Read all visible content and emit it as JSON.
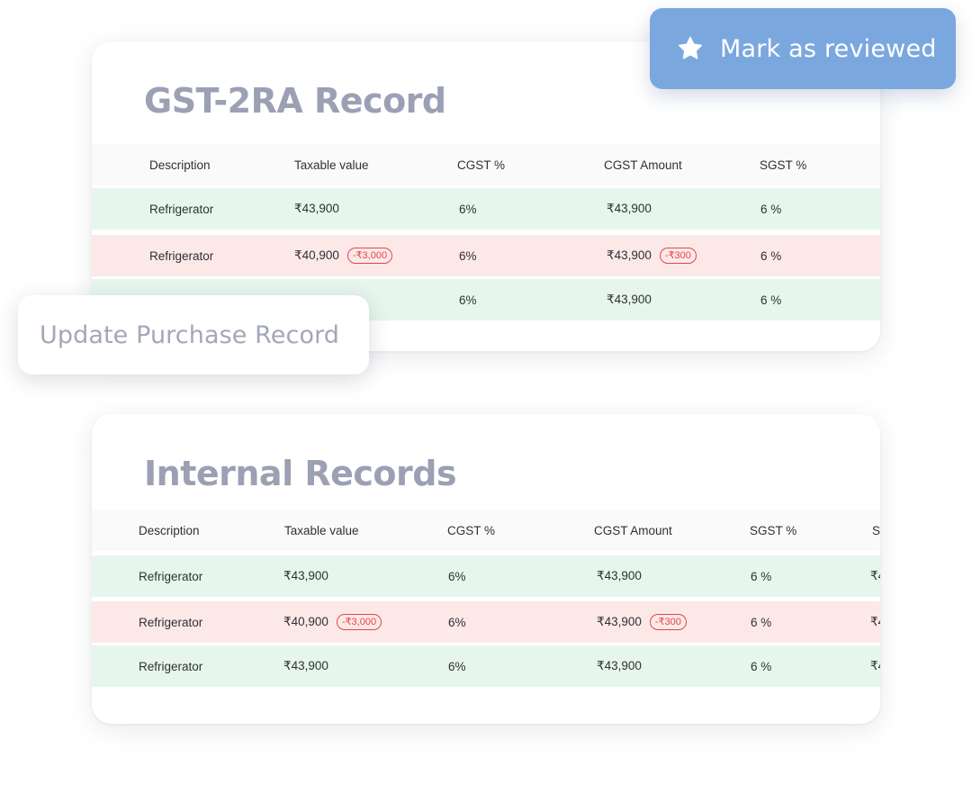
{
  "actions": {
    "mark_reviewed": {
      "label": "Mark as reviewed",
      "icon": "star-icon",
      "color": "#7ba7df"
    },
    "update_record": {
      "label": "Update Purchase Record"
    }
  },
  "gst_record": {
    "title": "GST-2RA Record",
    "columns": [
      "Description",
      "Taxable value",
      "CGST %",
      "CGST Amount",
      "SGST %"
    ],
    "rows": [
      {
        "status": "match",
        "description": "Refrigerator",
        "taxable_value": "₹43,900",
        "taxable_diff": "",
        "cgst_pct": "6%",
        "cgst_amount": "₹43,900",
        "cgst_diff": "",
        "sgst_pct": "6 %"
      },
      {
        "status": "mismatch",
        "description": "Refrigerator",
        "taxable_value": "₹40,900",
        "taxable_diff": "-₹3,000",
        "cgst_pct": "6%",
        "cgst_amount": "₹43,900",
        "cgst_diff": "-₹300",
        "sgst_pct": "6 %"
      },
      {
        "status": "match",
        "description": "",
        "taxable_value": "",
        "taxable_diff": "",
        "cgst_pct": "6%",
        "cgst_amount": "₹43,900",
        "cgst_diff": "",
        "sgst_pct": "6 %"
      }
    ]
  },
  "internal_records": {
    "title": "Internal Records",
    "columns": [
      "Description",
      "Taxable value",
      "CGST %",
      "CGST Amount",
      "SGST %",
      "S"
    ],
    "rows": [
      {
        "status": "match",
        "description": "Refrigerator",
        "taxable_value": "₹43,900",
        "taxable_diff": "",
        "cgst_pct": "6%",
        "cgst_amount": "₹43,900",
        "cgst_diff": "",
        "sgst_pct": "6 %",
        "extra": "₹4"
      },
      {
        "status": "mismatch",
        "description": "Refrigerator",
        "taxable_value": "₹40,900",
        "taxable_diff": "-₹3,000",
        "cgst_pct": "6%",
        "cgst_amount": "₹43,900",
        "cgst_diff": "-₹300",
        "sgst_pct": "6 %",
        "extra": "₹4"
      },
      {
        "status": "match",
        "description": "Refrigerator",
        "taxable_value": "₹43,900",
        "taxable_diff": "",
        "cgst_pct": "6%",
        "cgst_amount": "₹43,900",
        "cgst_diff": "",
        "sgst_pct": "6 %",
        "extra": "₹4"
      }
    ]
  },
  "colors": {
    "match_row": "#e6f6ed",
    "mismatch_row": "#fde8e8",
    "diff_badge": "#e0484a",
    "title": "#9ba0b4"
  }
}
